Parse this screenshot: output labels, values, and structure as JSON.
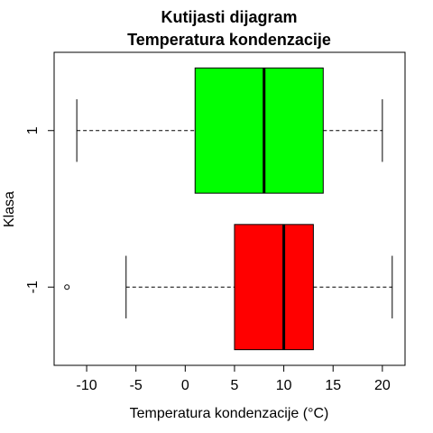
{
  "chart_data": {
    "type": "boxplot",
    "orientation": "horizontal",
    "title": [
      "Kutijasti dijagram",
      "Temperatura kondenzacije"
    ],
    "xlabel": "Temperatura kondenzacije (°C)",
    "ylabel": "Klasa",
    "xlim": [
      -13.3,
      22.3
    ],
    "x_ticks": [
      -10,
      -5,
      0,
      5,
      10,
      15,
      20
    ],
    "x_tick_labels": [
      "-10",
      "-5",
      "0",
      "5",
      "10",
      "15",
      "20"
    ],
    "categories": [
      "-1",
      "1"
    ],
    "boxes": [
      {
        "class": "-1",
        "whisker_low": -6,
        "q1": 5,
        "median": 10,
        "q3": 13,
        "whisker_high": 21,
        "outliers": [
          -12
        ],
        "color": "#ff0000"
      },
      {
        "class": "1",
        "whisker_low": -11,
        "q1": 1,
        "median": 8,
        "q3": 14,
        "whisker_high": 20,
        "outliers": [],
        "color": "#00ff00"
      }
    ]
  }
}
